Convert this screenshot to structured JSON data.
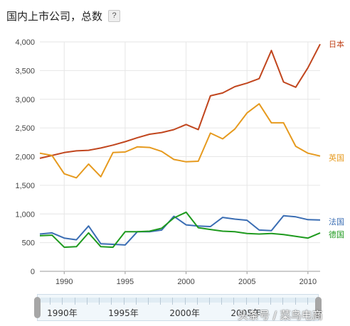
{
  "header": {
    "title": "国内上市公司，总数",
    "help_label": "?"
  },
  "chart_data": {
    "type": "line",
    "title": "国内上市公司，总数",
    "xlabel": "",
    "ylabel": "",
    "xlim": [
      1988,
      2011
    ],
    "ylim": [
      0,
      4000
    ],
    "y_ticks": [
      0,
      500,
      1000,
      1500,
      2000,
      2500,
      3000,
      3500,
      4000
    ],
    "y_tick_labels": [
      "0",
      "500",
      "1,000",
      "1,500",
      "2,000",
      "2,500",
      "3,000",
      "3,500",
      "4,000"
    ],
    "x_ticks": [
      1990,
      1995,
      2000,
      2005,
      2010
    ],
    "x_tick_labels": [
      "1990",
      "1995",
      "2000",
      "2005",
      "2010"
    ],
    "grid": true,
    "legend": "right-end labels",
    "x": [
      1988,
      1989,
      1990,
      1991,
      1992,
      1993,
      1994,
      1995,
      1996,
      1997,
      1998,
      1999,
      2000,
      2001,
      2002,
      2003,
      2004,
      2005,
      2006,
      2007,
      2008,
      2009,
      2010,
      2011
    ],
    "series": [
      {
        "name": "日本",
        "color": "#c1461e",
        "values": [
          1970,
          2020,
          2070,
          2100,
          2110,
          2150,
          2200,
          2260,
          2330,
          2390,
          2420,
          2470,
          2560,
          2470,
          3060,
          3110,
          3220,
          3280,
          3360,
          3850,
          3300,
          3210,
          3550,
          3960
        ]
      },
      {
        "name": "英国",
        "color": "#e69a1e",
        "values": [
          2060,
          2020,
          1700,
          1630,
          1870,
          1650,
          2070,
          2080,
          2170,
          2160,
          2090,
          1950,
          1910,
          1920,
          2410,
          2310,
          2480,
          2760,
          2920,
          2590,
          2590,
          2180,
          2060,
          2010
        ]
      },
      {
        "name": "法国",
        "color": "#3a6db3",
        "values": [
          650,
          670,
          580,
          550,
          790,
          480,
          470,
          460,
          690,
          690,
          720,
          960,
          810,
          790,
          780,
          940,
          910,
          890,
          720,
          710,
          970,
          950,
          900,
          895
        ]
      },
      {
        "name": "德国",
        "color": "#1e9a1e",
        "values": [
          620,
          630,
          420,
          430,
          670,
          430,
          420,
          690,
          690,
          700,
          750,
          930,
          1030,
          760,
          730,
          700,
          690,
          660,
          650,
          660,
          640,
          610,
          580,
          670
        ]
      }
    ]
  },
  "timeline": {
    "labels": [
      "1990年",
      "1995年",
      "2000年",
      "2005年"
    ],
    "label_years": [
      1990,
      1995,
      2000,
      2005
    ]
  },
  "watermark": "头条号 / 菜鸟电商"
}
